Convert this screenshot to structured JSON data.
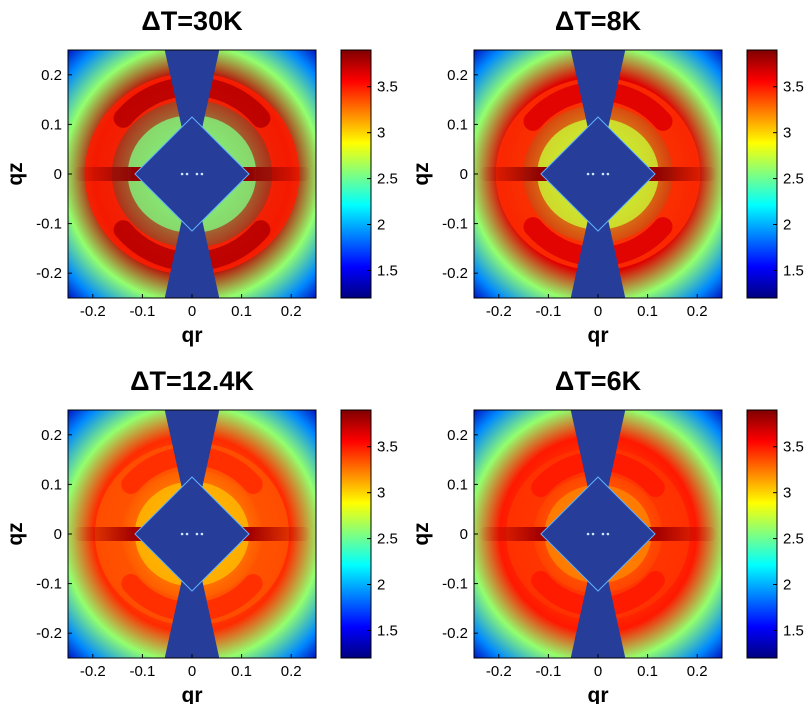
{
  "figure": {
    "colormap": [
      "#00007f",
      "#0000ff",
      "#0080ff",
      "#00ffff",
      "#80ff80",
      "#ffff00",
      "#ff8000",
      "#ff0000",
      "#7f0000"
    ],
    "mask_color": "#263e9a"
  },
  "chart_data": [
    {
      "type": "heatmap",
      "title": "ΔT=30K",
      "xlabel": "qr",
      "ylabel": "qz",
      "xlim": [
        -0.25,
        0.25
      ],
      "ylim": [
        -0.25,
        0.25
      ],
      "xticks": [
        "-0.2",
        "-0.1",
        "0",
        "0.1",
        "0.2"
      ],
      "yticks": [
        "0.2",
        "0.1",
        "0",
        "-0.1",
        "-0.2"
      ],
      "colorbar_ticks": [
        "3.5",
        "3",
        "2.5",
        "2",
        "1.5"
      ],
      "clim": [
        1.2,
        3.9
      ],
      "ring_radius": 0.18,
      "ring_peak": 3.75,
      "inner_level": 2.55,
      "ring_modulation": 0.9,
      "equator_peak": 3.85,
      "grid": false
    },
    {
      "type": "heatmap",
      "title": "ΔT=8K",
      "xlabel": "qr",
      "ylabel": "qz",
      "xlim": [
        -0.25,
        0.25
      ],
      "ylim": [
        -0.25,
        0.25
      ],
      "xticks": [
        "-0.2",
        "-0.1",
        "0",
        "0.1",
        "0.2"
      ],
      "yticks": [
        "0.2",
        "0.1",
        "0",
        "-0.1",
        "-0.2"
      ],
      "colorbar_ticks": [
        "3.5",
        "3",
        "2.5",
        "2",
        "1.5"
      ],
      "clim": [
        1.2,
        3.9
      ],
      "ring_radius": 0.17,
      "ring_peak": 3.65,
      "inner_level": 2.75,
      "ring_modulation": 0.7,
      "equator_peak": 3.85,
      "grid": false
    },
    {
      "type": "heatmap",
      "title": "ΔT=12.4K",
      "xlabel": "qr",
      "ylabel": "qz",
      "xlim": [
        -0.25,
        0.25
      ],
      "ylim": [
        -0.25,
        0.25
      ],
      "xticks": [
        "-0.2",
        "-0.1",
        "0",
        "0.1",
        "0.2"
      ],
      "yticks": [
        "0.2",
        "0.1",
        "0",
        "-0.1",
        "-0.2"
      ],
      "colorbar_ticks": [
        "3.5",
        "3",
        "2.5",
        "2",
        "1.5"
      ],
      "clim": [
        1.2,
        3.9
      ],
      "ring_radius": 0.16,
      "ring_peak": 3.45,
      "inner_level": 3.05,
      "ring_modulation": 0.35,
      "equator_peak": 3.8,
      "grid": false
    },
    {
      "type": "heatmap",
      "title": "ΔT=6K",
      "xlabel": "qr",
      "ylabel": "qz",
      "xlim": [
        -0.25,
        0.25
      ],
      "ylim": [
        -0.25,
        0.25
      ],
      "xticks": [
        "-0.2",
        "-0.1",
        "0",
        "0.1",
        "0.2"
      ],
      "yticks": [
        "0.2",
        "0.1",
        "0",
        "-0.1",
        "-0.2"
      ],
      "colorbar_ticks": [
        "3.5",
        "3",
        "2.5",
        "2",
        "1.5"
      ],
      "clim": [
        1.2,
        3.9
      ],
      "ring_radius": 0.15,
      "ring_peak": 3.5,
      "inner_level": 3.2,
      "ring_modulation": 0.25,
      "equator_peak": 3.8,
      "grid": false
    }
  ]
}
